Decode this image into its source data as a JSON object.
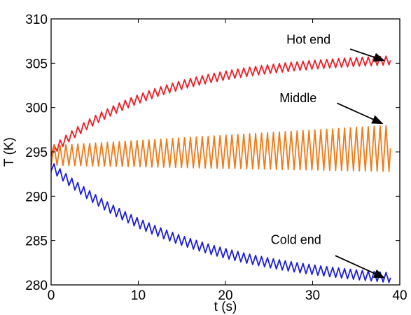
{
  "chart_data": {
    "type": "line",
    "xlabel": "t (s)",
    "ylabel": "T (K)",
    "xlim": [
      0,
      40
    ],
    "ylim": [
      280,
      310
    ],
    "xticks": [
      0,
      10,
      20,
      30,
      40
    ],
    "yticks": [
      280,
      285,
      290,
      295,
      300,
      305,
      310
    ],
    "grid": false,
    "series": [
      {
        "color": "#ee1c25",
        "start": 295.0,
        "end": 305.8,
        "tau": 12.5,
        "amplitude": 0.5,
        "period": 0.68,
        "t_end": 39.0
      },
      {
        "color": "#f07a18",
        "center_start": 294.6,
        "center_end": 295.4,
        "amplitude_start": 1.1,
        "amplitude_end": 2.6,
        "period": 0.68,
        "t_end": 39.0
      },
      {
        "color": "#1c1ce0",
        "start": 293.4,
        "end": 279.6,
        "tau": 16.0,
        "amplitude": 0.55,
        "period": 0.68,
        "t_end": 39.0
      }
    ],
    "annotations": [
      {
        "text": "Hot end",
        "text_at": [
          27.0,
          307.2
        ],
        "arrow_from": [
          34.3,
          306.6
        ],
        "arrow_to": [
          38.2,
          305.3
        ]
      },
      {
        "text": "Middle",
        "text_at": [
          26.2,
          300.6
        ],
        "arrow_from": [
          32.8,
          300.5
        ],
        "arrow_to": [
          38.0,
          298.2
        ]
      },
      {
        "text": "Cold end",
        "text_at": [
          25.2,
          284.6
        ],
        "arrow_from": [
          32.6,
          283.3
        ],
        "arrow_to": [
          38.2,
          280.8
        ]
      }
    ]
  }
}
